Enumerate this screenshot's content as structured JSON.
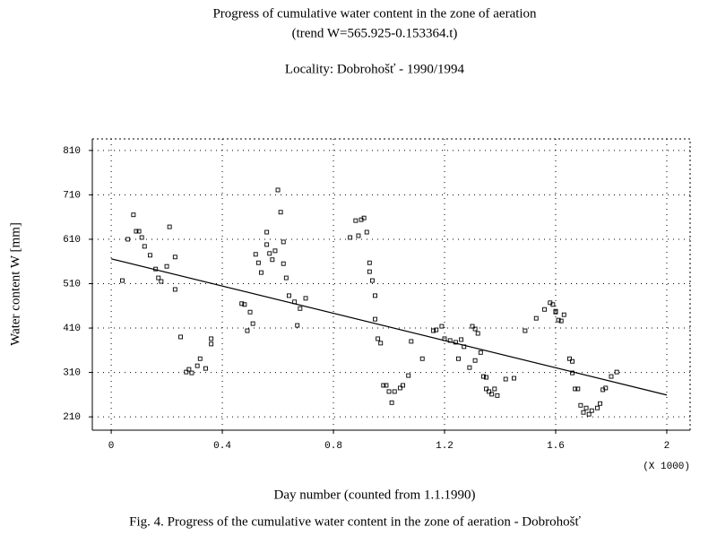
{
  "chart_data": {
    "type": "scatter",
    "title": "Progress of cumulative water content in the zone of aeration",
    "subtitle": "(trend W=565.925-0.153364.t)",
    "annotation": "Locality: Dobrohošť - 1990/1994",
    "y_label": "Water content W [mm]",
    "x_label": "Day number (counted from 1.1.1990)",
    "x_multiplier": "(X 1000)",
    "caption": "Fig. 4. Progress of the cumulative water content in the zone of aeration - Dobrohošť",
    "xlim": [
      -0.068,
      2.084
    ],
    "ylim": [
      180,
      836
    ],
    "xticks": [
      0,
      0.4,
      0.8,
      1.2,
      1.6,
      2
    ],
    "yticks": [
      210,
      310,
      410,
      510,
      610,
      710,
      810
    ],
    "grid": true,
    "color": "#000000",
    "x": [
      0.04,
      0.06,
      0.08,
      0.09,
      0.1,
      0.11,
      0.12,
      0.14,
      0.16,
      0.17,
      0.18,
      0.2,
      0.21,
      0.23,
      0.23,
      0.25,
      0.27,
      0.28,
      0.29,
      0.31,
      0.32,
      0.34,
      0.36,
      0.36,
      0.47,
      0.48,
      0.49,
      0.5,
      0.51,
      0.52,
      0.53,
      0.54,
      0.56,
      0.56,
      0.57,
      0.58,
      0.59,
      0.6,
      0.61,
      0.62,
      0.62,
      0.63,
      0.64,
      0.66,
      0.67,
      0.68,
      0.7,
      0.86,
      0.88,
      0.89,
      0.9,
      0.91,
      0.92,
      0.93,
      0.93,
      0.94,
      0.95,
      0.95,
      0.96,
      0.97,
      0.98,
      0.99,
      1.0,
      1.01,
      1.02,
      1.04,
      1.05,
      1.07,
      1.08,
      1.12,
      1.16,
      1.17,
      1.19,
      1.2,
      1.22,
      1.24,
      1.25,
      1.26,
      1.27,
      1.29,
      1.3,
      1.31,
      1.31,
      1.32,
      1.33,
      1.34,
      1.35,
      1.35,
      1.36,
      1.37,
      1.38,
      1.39,
      1.42,
      1.45,
      1.49,
      1.53,
      1.56,
      1.58,
      1.59,
      1.6,
      1.6,
      1.61,
      1.62,
      1.63,
      1.65,
      1.66,
      1.66,
      1.67,
      1.68,
      1.69,
      1.7,
      1.71,
      1.72,
      1.73,
      1.75,
      1.76,
      1.77,
      1.78,
      1.8,
      1.82
    ],
    "values": [
      517,
      610,
      665,
      628,
      628,
      614,
      594,
      574,
      543,
      523,
      515,
      549,
      638,
      570,
      497,
      390,
      311,
      317,
      309,
      325,
      341,
      319,
      374,
      386,
      465,
      463,
      404,
      446,
      420,
      576,
      557,
      535,
      598,
      626,
      578,
      564,
      584,
      721,
      671,
      604,
      555,
      523,
      483,
      469,
      416,
      454,
      477,
      614,
      652,
      618,
      654,
      658,
      626,
      557,
      537,
      517,
      483,
      430,
      386,
      376,
      281,
      281,
      267,
      242,
      267,
      275,
      281,
      303,
      380,
      341,
      404,
      406,
      414,
      386,
      382,
      378,
      341,
      384,
      368,
      321,
      414,
      337,
      408,
      398,
      355,
      301,
      299,
      273,
      267,
      261,
      273,
      258,
      295,
      297,
      404,
      432,
      452,
      467,
      463,
      446,
      448,
      428,
      426,
      440,
      341,
      335,
      309,
      273,
      273,
      236,
      220,
      230,
      216,
      224,
      230,
      240,
      271,
      275,
      301,
      311
    ],
    "trend": {
      "x": [
        0,
        2
      ],
      "values": [
        565.925,
        259.197
      ]
    }
  }
}
